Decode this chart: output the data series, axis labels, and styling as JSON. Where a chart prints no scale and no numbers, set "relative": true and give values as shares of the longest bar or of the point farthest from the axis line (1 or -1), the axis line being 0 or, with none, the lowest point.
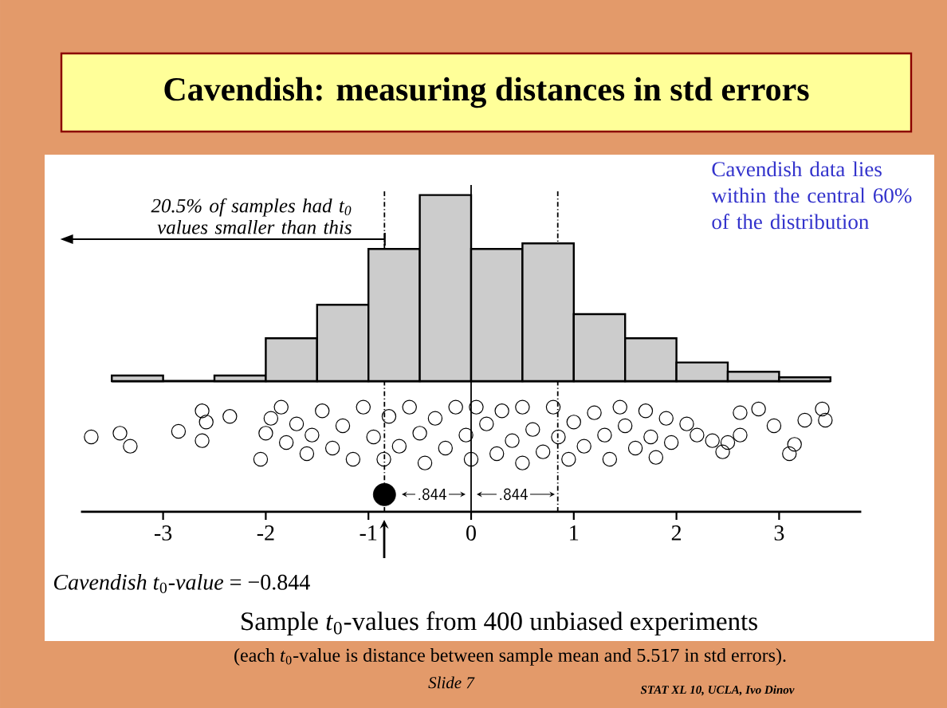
{
  "chart_data": {
    "type": "histogram",
    "title": "Cavendish: measuring distances in std errors",
    "xlabel": "Sample *t*$_{0}$-values from 400 unbiased experiments",
    "bins": [
      -3.5,
      -3,
      -2.5,
      -2,
      -1.5,
      -1,
      -0.5,
      0,
      0.5,
      1,
      1.5,
      2,
      2.5,
      3,
      3.5
    ],
    "values": [
      0.03,
      0,
      0.03,
      0.23,
      0.41,
      0.71,
      1,
      0.71,
      0.74,
      0.36,
      0.23,
      0.1,
      0.05,
      0.02
    ],
    "relative": true,
    "color": "#cccccc",
    "xlim": [
      -3.8,
      3.8
    ],
    "xticks": [
      -3,
      -2,
      -1,
      0,
      1,
      2,
      3
    ],
    "marker": "circle",
    "series": [
      {
        "type": "scatter",
        "color": "#000000",
        "x": [
          -3.7,
          -3.42,
          -3.32,
          -2.85,
          -2.62,
          -2.58,
          -2.62,
          -2.35,
          -2.05,
          -2.0,
          -1.95,
          -1.85,
          -1.8,
          -1.7,
          -1.6,
          -1.55,
          -1.45,
          -1.35,
          -1.25,
          -1.15,
          -1.05,
          -0.95,
          -0.85,
          -0.8,
          -0.7,
          -0.6,
          -0.5,
          -0.45,
          -0.35,
          -0.25,
          -0.15,
          -0.05,
          0.0,
          0.05,
          0.15,
          0.25,
          0.3,
          0.4,
          0.5,
          0.5,
          0.6,
          0.7,
          0.8,
          0.85,
          0.95,
          1.0,
          1.1,
          1.2,
          1.3,
          1.35,
          1.45,
          1.5,
          1.6,
          1.7,
          1.75,
          1.8,
          1.9,
          1.95,
          2.1,
          2.2,
          2.35,
          2.45,
          2.5,
          2.62,
          2.62,
          2.8,
          2.95,
          3.1,
          3.15,
          3.25,
          3.42,
          3.45
        ],
        "values": [
          -0.3,
          -0.28,
          -0.35,
          -0.27,
          -0.16,
          -0.22,
          -0.32,
          -0.19,
          -0.42,
          -0.28,
          -0.2,
          -0.14,
          -0.33,
          -0.23,
          -0.39,
          -0.29,
          -0.16,
          -0.36,
          -0.24,
          -0.42,
          -0.14,
          -0.3,
          -0.42,
          -0.19,
          -0.35,
          -0.14,
          -0.28,
          -0.44,
          -0.2,
          -0.36,
          -0.14,
          -0.29,
          -0.42,
          -0.14,
          -0.23,
          -0.39,
          -0.16,
          -0.32,
          -0.44,
          -0.14,
          -0.26,
          -0.38,
          -0.14,
          -0.3,
          -0.42,
          -0.22,
          -0.35,
          -0.17,
          -0.29,
          -0.42,
          -0.14,
          -0.24,
          -0.36,
          -0.16,
          -0.3,
          -0.41,
          -0.2,
          -0.33,
          -0.23,
          -0.29,
          -0.32,
          -0.38,
          -0.33,
          -0.17,
          -0.29,
          -0.15,
          -0.24,
          -0.39,
          -0.34,
          -0.21,
          -0.15,
          -0.21
        ]
      },
      {
        "type": "scatter",
        "color": "#000000",
        "x": [
          -0.844
        ],
        "values": [
          -0.61
        ]
      }
    ],
    "ref_lines": [
      {
        "axis": "x",
        "value": -0.844,
        "line_style": "dashed"
      },
      {
        "axis": "x",
        "value": 0,
        "line_style": "solid"
      },
      {
        "axis": "x",
        "value": 0.844,
        "line_style": "dashed"
      }
    ],
    "annotations": [
      "20.5% of samples had t$_{0}$ values smaller than this",
      "Cavendish data lies  within the central 60% of the distribution",
      ".844",
      ".844",
      "*Cavendish t*$_{0}$*-value* = −0.844",
      "(each *t*$_{0}$-value is distance between sample mean and 5.517 in std errors).",
      "Slide 7",
      "STAT XL 10, UCLA, Ivo Dinov"
    ]
  }
}
